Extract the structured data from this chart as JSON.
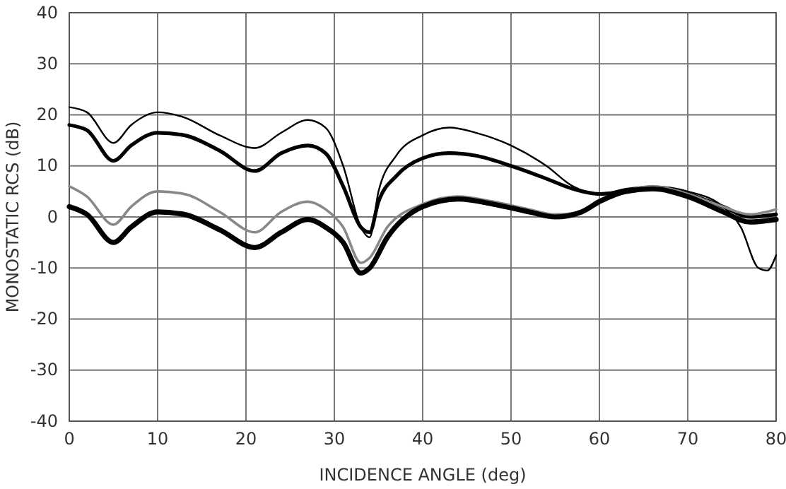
{
  "chart_data": {
    "type": "line",
    "xlabel": "INCIDENCE ANGLE (deg)",
    "ylabel": "MONOSTATIC RCS (dB)",
    "xlim": [
      0,
      80
    ],
    "ylim": [
      -40,
      40
    ],
    "xticks": [
      0,
      10,
      20,
      30,
      40,
      50,
      60,
      70,
      80
    ],
    "yticks": [
      -40,
      -30,
      -20,
      -10,
      0,
      10,
      20,
      30,
      40
    ],
    "grid": true,
    "marker": "none",
    "line_style": "solid",
    "series": [
      {
        "color": "#000000",
        "x": [
          0,
          2,
          5,
          7,
          10,
          13,
          17,
          21,
          24,
          27,
          29,
          31,
          33,
          34,
          35,
          37,
          40,
          43,
          46,
          50,
          54,
          57,
          60,
          63,
          66,
          70,
          74,
          76,
          78,
          79,
          80
        ],
        "values": [
          21.5,
          20.5,
          14.5,
          18,
          20.5,
          19.5,
          16,
          13.5,
          16.5,
          19,
          17.5,
          10,
          -2,
          -4,
          5,
          12,
          16,
          17.5,
          16.5,
          14,
          10,
          6,
          4.5,
          5.5,
          6,
          5,
          2,
          -2,
          -10,
          -10.5,
          -7.5
        ]
      },
      {
        "color": "#000000",
        "x": [
          0,
          2,
          5,
          7,
          10,
          13,
          17,
          21,
          24,
          27,
          29,
          31,
          33,
          34,
          35,
          37,
          40,
          43,
          46,
          50,
          54,
          57,
          60,
          63,
          66,
          70,
          74,
          77,
          80
        ],
        "values": [
          18,
          17,
          11,
          14,
          16.5,
          16,
          13,
          9,
          12.5,
          14,
          12.5,
          6,
          -2,
          -3,
          3,
          8,
          11.5,
          12.5,
          12,
          10,
          7.5,
          5.5,
          4.5,
          5,
          5.5,
          4.5,
          2,
          0,
          0.5
        ]
      },
      {
        "color": "#888888",
        "x": [
          0,
          2,
          5,
          7,
          10,
          13,
          17,
          21,
          24,
          27,
          29,
          31,
          33,
          34,
          36,
          40,
          44,
          48,
          52,
          55,
          58,
          60,
          63,
          66,
          70,
          74,
          77,
          80
        ],
        "values": [
          6,
          4,
          -1.5,
          2,
          5,
          4.5,
          1,
          -3,
          1,
          3,
          1.5,
          -2,
          -9,
          -8,
          -2,
          2.5,
          4,
          3,
          1.5,
          0.5,
          1,
          3,
          5,
          6,
          4.5,
          2,
          0.5,
          1.5
        ]
      },
      {
        "color": "#000000",
        "x": [
          0,
          2,
          5,
          7,
          10,
          13,
          17,
          21,
          24,
          27,
          29,
          31,
          33,
          34,
          36,
          40,
          44,
          48,
          52,
          55,
          58,
          60,
          63,
          66,
          70,
          74,
          77,
          80
        ],
        "values": [
          2,
          0.5,
          -5,
          -2,
          1,
          0.5,
          -2.5,
          -6,
          -3,
          -0.5,
          -2,
          -5,
          -11,
          -10,
          -4,
          2,
          3.5,
          2.5,
          1,
          0,
          1,
          3,
          5,
          5.5,
          4,
          1,
          -1,
          -0.5
        ]
      }
    ]
  }
}
